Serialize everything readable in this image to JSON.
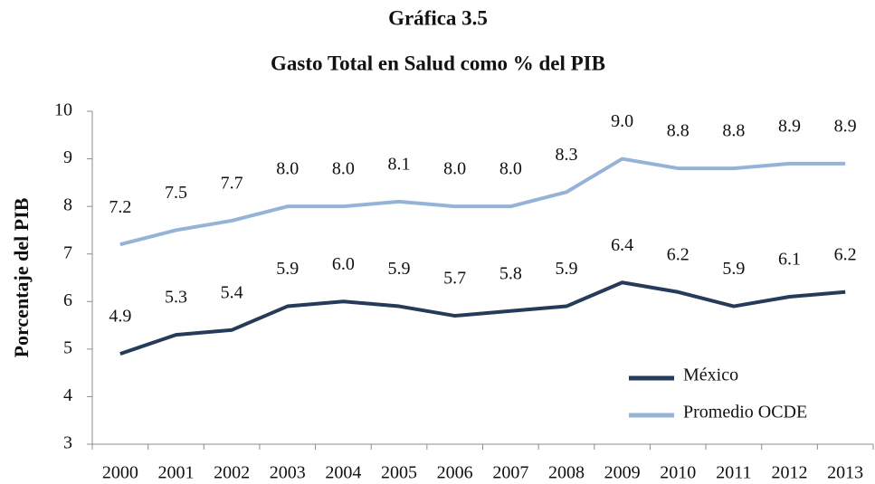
{
  "chart_data": {
    "type": "line",
    "title": "Gráfica 3.5",
    "subtitle": "Gasto Total en Salud como % del PIB",
    "y_label": "Porcentaje del PIB",
    "categories": [
      "2000",
      "2001",
      "2002",
      "2003",
      "2004",
      "2005",
      "2006",
      "2007",
      "2008",
      "2009",
      "2010",
      "2011",
      "2012",
      "2013"
    ],
    "series": [
      {
        "name": "México",
        "color": "#243b5a",
        "values": [
          4.9,
          5.3,
          5.4,
          5.9,
          6.0,
          5.9,
          5.7,
          5.8,
          5.9,
          6.4,
          6.2,
          5.9,
          6.1,
          6.2
        ],
        "value_labels": [
          "4.9",
          "5.3",
          "5.4",
          "5.9",
          "6.0",
          "5.9",
          "5.7",
          "5.8",
          "5.9",
          "6.4",
          "6.2",
          "5.9",
          "6.1",
          "6.2"
        ]
      },
      {
        "name": "Promedio OCDE",
        "color": "#95b3d7",
        "values": [
          7.2,
          7.5,
          7.7,
          8.0,
          8.0,
          8.1,
          8.0,
          8.0,
          8.3,
          9.0,
          8.8,
          8.8,
          8.9,
          8.9
        ],
        "value_labels": [
          "7.2",
          "7.5",
          "7.7",
          "8.0",
          "8.0",
          "8.1",
          "8.0",
          "8.0",
          "8.3",
          "9.0",
          "8.8",
          "8.8",
          "8.9",
          "8.9"
        ]
      }
    ],
    "ylim": [
      3,
      10
    ],
    "yticks": [
      3,
      4,
      5,
      6,
      7,
      8,
      9,
      10
    ],
    "grid": false,
    "legend": "lower right"
  }
}
